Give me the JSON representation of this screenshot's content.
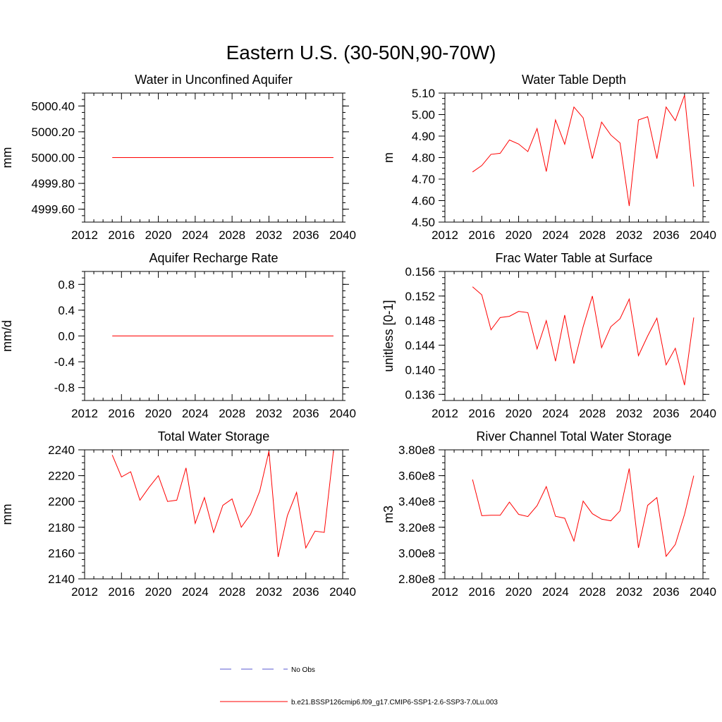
{
  "figure": {
    "title": "Eastern U.S. (30-50N,90-70W)",
    "legend": [
      {
        "label": "No Obs",
        "color": "#5a5ad2",
        "style": "dashed"
      },
      {
        "label": "b.e21.BSSP126cmip6.f09_g17.CMIP6-SSP1-2.6-SSP3-7.0Lu.003",
        "color": "#ff0000",
        "style": "solid"
      }
    ]
  },
  "chart_data": [
    {
      "type": "line",
      "title": "Water in Unconfined Aquifer",
      "xlabel": "",
      "ylabel": "mm",
      "xlim": [
        2012,
        2040
      ],
      "xticks": [
        2012,
        2016,
        2020,
        2024,
        2028,
        2032,
        2036,
        2040
      ],
      "xtick_labels": [
        "2012",
        "2016",
        "2020",
        "2024",
        "2028",
        "2032",
        "2036",
        "2040"
      ],
      "ylim": [
        4999.5,
        5000.5
      ],
      "yticks": [
        4999.6,
        4999.8,
        5000.0,
        5000.2,
        5000.4
      ],
      "ytick_labels": [
        "4999.60",
        "4999.80",
        "5000.00",
        "5000.20",
        "5000.40"
      ],
      "yminor": 0.05,
      "x": [
        2015,
        2016,
        2017,
        2018,
        2019,
        2020,
        2021,
        2022,
        2023,
        2024,
        2025,
        2026,
        2027,
        2028,
        2029,
        2030,
        2031,
        2032,
        2033,
        2034,
        2035,
        2036,
        2037,
        2038,
        2039
      ],
      "series": [
        {
          "name": "b.e21.BSSP126cmip6.f09_g17.CMIP6-SSP1-2.6-SSP3-7.0Lu.003",
          "color": "#ff0000",
          "values": [
            5000,
            5000,
            5000,
            5000,
            5000,
            5000,
            5000,
            5000,
            5000,
            5000,
            5000,
            5000,
            5000,
            5000,
            5000,
            5000,
            5000,
            5000,
            5000,
            5000,
            5000,
            5000,
            5000,
            5000,
            5000
          ]
        }
      ]
    },
    {
      "type": "line",
      "title": "Water Table Depth",
      "xlabel": "",
      "ylabel": "m",
      "xlim": [
        2012,
        2040
      ],
      "xticks": [
        2012,
        2016,
        2020,
        2024,
        2028,
        2032,
        2036,
        2040
      ],
      "xtick_labels": [
        "2012",
        "2016",
        "2020",
        "2024",
        "2028",
        "2032",
        "2036",
        "2040"
      ],
      "ylim": [
        4.5,
        5.1
      ],
      "yticks": [
        4.5,
        4.6,
        4.7,
        4.8,
        4.9,
        5.0,
        5.1
      ],
      "ytick_labels": [
        "4.50",
        "4.60",
        "4.70",
        "4.80",
        "4.90",
        "5.00",
        "5.10"
      ],
      "yminor": 0.025,
      "x": [
        2015,
        2016,
        2017,
        2018,
        2019,
        2020,
        2021,
        2022,
        2023,
        2024,
        2025,
        2026,
        2027,
        2028,
        2029,
        2030,
        2031,
        2032,
        2033,
        2034,
        2035,
        2036,
        2037,
        2038,
        2039
      ],
      "series": [
        {
          "name": "b.e21.BSSP126cmip6.f09_g17.CMIP6-SSP1-2.6-SSP3-7.0Lu.003",
          "color": "#ff0000",
          "values": [
            4.733,
            4.763,
            4.815,
            4.82,
            4.882,
            4.863,
            4.828,
            4.935,
            4.735,
            4.975,
            4.862,
            5.035,
            4.985,
            4.795,
            4.965,
            4.905,
            4.868,
            4.575,
            4.975,
            4.99,
            4.795,
            5.035,
            4.972,
            5.09,
            4.665
          ]
        }
      ]
    },
    {
      "type": "line",
      "title": "Aquifer Recharge Rate",
      "xlabel": "",
      "ylabel": "mm/d",
      "xlim": [
        2012,
        2040
      ],
      "xticks": [
        2012,
        2016,
        2020,
        2024,
        2028,
        2032,
        2036,
        2040
      ],
      "xtick_labels": [
        "2012",
        "2016",
        "2020",
        "2024",
        "2028",
        "2032",
        "2036",
        "2040"
      ],
      "ylim": [
        -1.0,
        1.0
      ],
      "yticks": [
        -0.8,
        -0.4,
        0.0,
        0.4,
        0.8
      ],
      "ytick_labels": [
        "-0.8",
        "-0.4",
        "0.0",
        "0.4",
        "0.8"
      ],
      "yminor": 0.1,
      "x": [
        2015,
        2016,
        2017,
        2018,
        2019,
        2020,
        2021,
        2022,
        2023,
        2024,
        2025,
        2026,
        2027,
        2028,
        2029,
        2030,
        2031,
        2032,
        2033,
        2034,
        2035,
        2036,
        2037,
        2038,
        2039
      ],
      "series": [
        {
          "name": "b.e21.BSSP126cmip6.f09_g17.CMIP6-SSP1-2.6-SSP3-7.0Lu.003",
          "color": "#ff0000",
          "values": [
            0,
            0,
            0,
            0,
            0,
            0,
            0,
            0,
            0,
            0,
            0,
            0,
            0,
            0,
            0,
            0,
            0,
            0,
            0,
            0,
            0,
            0,
            0,
            0,
            0
          ]
        }
      ]
    },
    {
      "type": "line",
      "title": "Frac Water Table at Surface",
      "xlabel": "",
      "ylabel": "unitless [0-1]",
      "xlim": [
        2012,
        2040
      ],
      "xticks": [
        2012,
        2016,
        2020,
        2024,
        2028,
        2032,
        2036,
        2040
      ],
      "xtick_labels": [
        "2012",
        "2016",
        "2020",
        "2024",
        "2028",
        "2032",
        "2036",
        "2040"
      ],
      "ylim": [
        0.135,
        0.156
      ],
      "yticks": [
        0.136,
        0.14,
        0.144,
        0.148,
        0.152,
        0.156
      ],
      "ytick_labels": [
        "0.136",
        "0.140",
        "0.144",
        "0.148",
        "0.152",
        "0.156"
      ],
      "yminor": 0.001,
      "x": [
        2015,
        2016,
        2017,
        2018,
        2019,
        2020,
        2021,
        2022,
        2023,
        2024,
        2025,
        2026,
        2027,
        2028,
        2029,
        2030,
        2031,
        2032,
        2033,
        2034,
        2035,
        2036,
        2037,
        2038,
        2039
      ],
      "series": [
        {
          "name": "b.e21.BSSP126cmip6.f09_g17.CMIP6-SSP1-2.6-SSP3-7.0Lu.003",
          "color": "#ff0000",
          "values": [
            0.1535,
            0.1522,
            0.1465,
            0.1485,
            0.1487,
            0.1495,
            0.1493,
            0.1434,
            0.148,
            0.1414,
            0.1489,
            0.141,
            0.147,
            0.152,
            0.1436,
            0.147,
            0.1483,
            0.1515,
            0.1423,
            0.1455,
            0.1484,
            0.1408,
            0.1435,
            0.1375,
            0.1485
          ]
        }
      ]
    },
    {
      "type": "line",
      "title": "Total Water Storage",
      "xlabel": "",
      "ylabel": "mm",
      "xlim": [
        2012,
        2040
      ],
      "xticks": [
        2012,
        2016,
        2020,
        2024,
        2028,
        2032,
        2036,
        2040
      ],
      "xtick_labels": [
        "2012",
        "2016",
        "2020",
        "2024",
        "2028",
        "2032",
        "2036",
        "2040"
      ],
      "ylim": [
        2140,
        2240
      ],
      "yticks": [
        2140,
        2160,
        2180,
        2200,
        2220,
        2240
      ],
      "ytick_labels": [
        "2140",
        "2160",
        "2180",
        "2200",
        "2220",
        "2240"
      ],
      "yminor": 5,
      "x": [
        2015,
        2016,
        2017,
        2018,
        2019,
        2020,
        2021,
        2022,
        2023,
        2024,
        2025,
        2026,
        2027,
        2028,
        2029,
        2030,
        2031,
        2032,
        2033,
        2034,
        2035,
        2036,
        2037,
        2038,
        2039
      ],
      "series": [
        {
          "name": "b.e21.BSSP126cmip6.f09_g17.CMIP6-SSP1-2.6-SSP3-7.0Lu.003",
          "color": "#ff0000",
          "values": [
            2236,
            2219,
            2223,
            2201,
            2211,
            2220,
            2200,
            2201,
            2226,
            2183,
            2203,
            2176,
            2197,
            2202,
            2180,
            2190,
            2208,
            2239,
            2157,
            2189,
            2207,
            2164,
            2177,
            2176,
            2239
          ]
        }
      ]
    },
    {
      "type": "line",
      "title": "River Channel Total Water Storage",
      "xlabel": "",
      "ylabel": "m3",
      "xlim": [
        2012,
        2040
      ],
      "xticks": [
        2012,
        2016,
        2020,
        2024,
        2028,
        2032,
        2036,
        2040
      ],
      "xtick_labels": [
        "2012",
        "2016",
        "2020",
        "2024",
        "2028",
        "2032",
        "2036",
        "2040"
      ],
      "ylim": [
        280000000,
        380000000
      ],
      "yticks": [
        280000000,
        300000000,
        320000000,
        340000000,
        360000000,
        380000000
      ],
      "ytick_labels": [
        "2.80e8",
        "3.00e8",
        "3.20e8",
        "3.40e8",
        "3.60e8",
        "3.80e8"
      ],
      "yminor": 5000000,
      "x": [
        2015,
        2016,
        2017,
        2018,
        2019,
        2020,
        2021,
        2022,
        2023,
        2024,
        2025,
        2026,
        2027,
        2028,
        2029,
        2030,
        2031,
        2032,
        2033,
        2034,
        2035,
        2036,
        2037,
        2038,
        2039
      ],
      "series": [
        {
          "name": "b.e21.BSSP126cmip6.f09_g17.CMIP6-SSP1-2.6-SSP3-7.0Lu.003",
          "color": "#ff0000",
          "values": [
            357000000,
            329000000,
            329300000,
            329300000,
            339500000,
            330000000,
            328300000,
            336700000,
            351500000,
            328500000,
            327000000,
            309300000,
            340300000,
            330500000,
            326300000,
            325000000,
            332700000,
            365500000,
            304000000,
            337000000,
            343000000,
            297500000,
            306700000,
            330000000,
            360000000
          ]
        }
      ]
    }
  ]
}
